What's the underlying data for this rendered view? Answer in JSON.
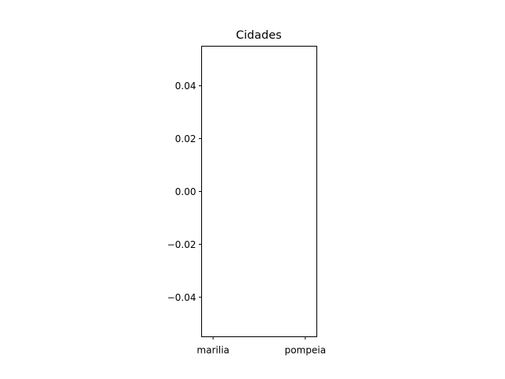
{
  "chart_data": {
    "type": "bar",
    "title": "Cidades",
    "categories": [
      "marilia",
      "pompeia"
    ],
    "values": [
      0,
      0
    ],
    "xlabel": "",
    "ylabel": "",
    "ylim": [
      -0.055,
      0.055
    ],
    "yticks": [
      0.04,
      0.02,
      0.0,
      -0.02,
      -0.04
    ],
    "ytick_labels": [
      "0.04",
      "0.02",
      "0.00",
      "−0.02",
      "−0.04"
    ],
    "grid": false,
    "colors": {
      "axes": "#000000",
      "background": "#ffffff"
    }
  }
}
